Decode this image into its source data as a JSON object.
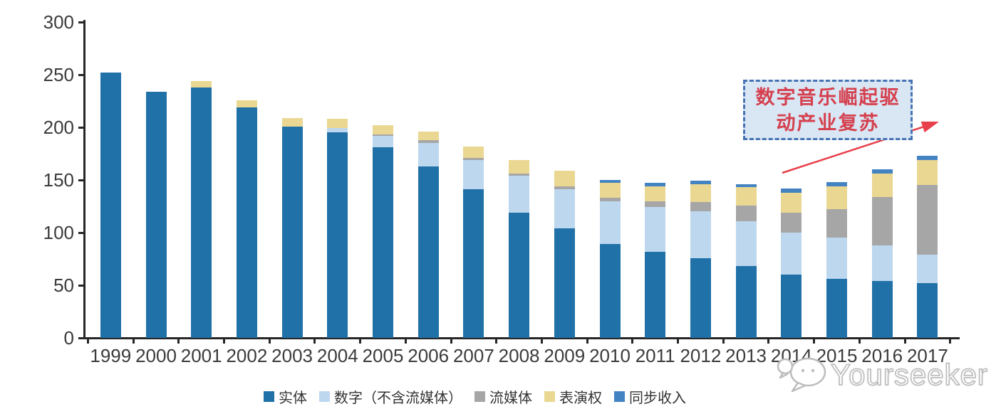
{
  "chart_data": {
    "type": "bar",
    "stacked": true,
    "title": "",
    "xlabel": "",
    "ylabel": "",
    "ylim": [
      0,
      300
    ],
    "yticks": [
      0,
      50,
      100,
      150,
      200,
      250,
      300
    ],
    "grid": false,
    "legend_position": "bottom",
    "categories": [
      "1999",
      "2000",
      "2001",
      "2002",
      "2003",
      "2004",
      "2005",
      "2006",
      "2007",
      "2008",
      "2009",
      "2010",
      "2011",
      "2012",
      "2013",
      "2014",
      "2015",
      "2016",
      "2017"
    ],
    "series": [
      {
        "name": "实体",
        "color": "#2171A9",
        "values": [
          252,
          234,
          238,
          219,
          201,
          195,
          181,
          163,
          141,
          119,
          104,
          89,
          82,
          76,
          68,
          60,
          56,
          54,
          52
        ]
      },
      {
        "name": "数字（不含流媒体）",
        "color": "#BDD7EE",
        "values": [
          0,
          0,
          0,
          0,
          0,
          4,
          11,
          22,
          28,
          35,
          37,
          41,
          42,
          44,
          43,
          40,
          39,
          34,
          27
        ]
      },
      {
        "name": "流媒体",
        "color": "#A6A6A6",
        "values": [
          0,
          0,
          0,
          0,
          0,
          0,
          1,
          3,
          2,
          2,
          3,
          3,
          6,
          9,
          15,
          19,
          27,
          46,
          66
        ]
      },
      {
        "name": "表演权",
        "color": "#EAD792",
        "values": [
          0,
          0,
          6,
          7,
          8,
          9,
          9,
          8,
          11,
          13,
          15,
          14,
          14,
          17,
          17,
          19,
          22,
          22,
          24
        ]
      },
      {
        "name": "同步收入",
        "color": "#4483C2",
        "values": [
          0,
          0,
          0,
          0,
          0,
          0,
          0,
          0,
          0,
          0,
          0,
          3,
          3,
          3,
          3,
          4,
          4,
          4,
          4
        ]
      }
    ]
  },
  "annotation": {
    "text": "数字音乐崛起驱动产业复苏",
    "lines": [
      "数字音乐崛起驱",
      "动产业复苏"
    ],
    "text_color": "#D5404E",
    "border_color": "#4673B4",
    "fill_color": "#D9E6F4",
    "arrow_color": "#E8404B"
  },
  "watermark": {
    "text": "Yourseeker"
  }
}
